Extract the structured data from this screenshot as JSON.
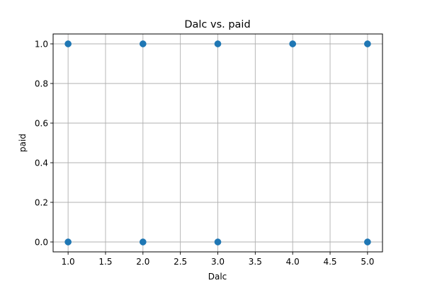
{
  "chart_data": {
    "type": "scatter",
    "title": "Dalc vs. paid",
    "xlabel": "Dalc",
    "ylabel": "paid",
    "xlim": [
      0.8,
      5.2
    ],
    "ylim": [
      -0.05,
      1.05
    ],
    "xticks": [
      1.0,
      1.5,
      2.0,
      2.5,
      3.0,
      3.5,
      4.0,
      4.5,
      5.0
    ],
    "xtick_labels": [
      "1.0",
      "1.5",
      "2.0",
      "2.5",
      "3.0",
      "3.5",
      "4.0",
      "4.5",
      "5.0"
    ],
    "yticks": [
      0.0,
      0.2,
      0.4,
      0.6,
      0.8,
      1.0
    ],
    "ytick_labels": [
      "0.0",
      "0.2",
      "0.4",
      "0.6",
      "0.8",
      "1.0"
    ],
    "grid": true,
    "color": "#1f77b4",
    "points": [
      {
        "x": 1,
        "y": 1
      },
      {
        "x": 2,
        "y": 1
      },
      {
        "x": 3,
        "y": 1
      },
      {
        "x": 4,
        "y": 1
      },
      {
        "x": 5,
        "y": 1
      },
      {
        "x": 1,
        "y": 0
      },
      {
        "x": 2,
        "y": 0
      },
      {
        "x": 3,
        "y": 0
      },
      {
        "x": 5,
        "y": 0
      }
    ]
  }
}
